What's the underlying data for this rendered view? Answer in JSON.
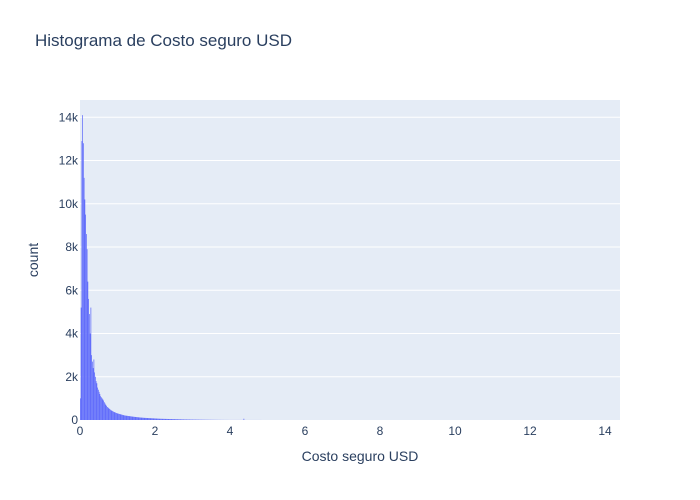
{
  "chart_data": {
    "type": "bar",
    "title": "Histograma de Costo seguro USD",
    "xlabel": "Costo seguro USD",
    "ylabel": "count",
    "xlim": [
      0,
      14.4
    ],
    "ylim": [
      0,
      14800
    ],
    "x_ticks": [
      0,
      2,
      4,
      6,
      8,
      10,
      12,
      14
    ],
    "x_tick_labels": [
      "0",
      "2",
      "4",
      "6",
      "8",
      "10",
      "12",
      "14"
    ],
    "y_ticks": [
      0,
      2000,
      4000,
      6000,
      8000,
      10000,
      12000,
      14000
    ],
    "y_tick_labels": [
      "0",
      "2k",
      "4k",
      "6k",
      "8k",
      "10k",
      "12k",
      "14k"
    ],
    "grid": true,
    "bin_width": 0.02,
    "bin_start": 0,
    "values": [
      1000,
      5200,
      12900,
      14100,
      12800,
      11200,
      10200,
      9500,
      8600,
      7900,
      6400,
      5600,
      4900,
      4000,
      5200,
      3000,
      2700,
      2400,
      2800,
      2200,
      2000,
      1800,
      1700,
      1500,
      1400,
      1300,
      1200,
      1100,
      1050,
      1000,
      950,
      900,
      820,
      760,
      700,
      650,
      600,
      570,
      540,
      510,
      480,
      450,
      430,
      410,
      390,
      370,
      355,
      340,
      325,
      310,
      300,
      290,
      280,
      270,
      260,
      250,
      240,
      230,
      220,
      210,
      205,
      200,
      195,
      190,
      185,
      180,
      175,
      170,
      165,
      160,
      155,
      150,
      146,
      142,
      138,
      134,
      130,
      126,
      122,
      118,
      115,
      112,
      109,
      106,
      103,
      100,
      98,
      96,
      94,
      92,
      90,
      88,
      86,
      84,
      82,
      80,
      78,
      76,
      74,
      72,
      70,
      68,
      66,
      64,
      62,
      60,
      58,
      57,
      56,
      55,
      54,
      53,
      52,
      51,
      50,
      49,
      48,
      47,
      46,
      45,
      44,
      43,
      42,
      41,
      40,
      39,
      38,
      37,
      36,
      35,
      34,
      33,
      32,
      31,
      30,
      29,
      28,
      27,
      26,
      25,
      25,
      24,
      24,
      23,
      23,
      22,
      22,
      21,
      21,
      20,
      20,
      19,
      19,
      18,
      18,
      17,
      17,
      16,
      16,
      15,
      15,
      14,
      14,
      13,
      13,
      12,
      12,
      11,
      11,
      10,
      10,
      10,
      9,
      9,
      9,
      8,
      8,
      8,
      7,
      7,
      7,
      6,
      6,
      6,
      5,
      5,
      5,
      5,
      4,
      4,
      4,
      4,
      3,
      3,
      3,
      3,
      3,
      3,
      2,
      2,
      2,
      2,
      2,
      2,
      2,
      2,
      2,
      2,
      2,
      2,
      2,
      2,
      2,
      2,
      2,
      2,
      2,
      2,
      60,
      2,
      2,
      2,
      1,
      1,
      1,
      1,
      1,
      1,
      1,
      1,
      1,
      1,
      1,
      1,
      1,
      1,
      1,
      1,
      1,
      1,
      1,
      1
    ],
    "colors": {
      "bar": "#636efa",
      "plot_bg": "#e5ecf6",
      "grid": "#ffffff"
    }
  }
}
